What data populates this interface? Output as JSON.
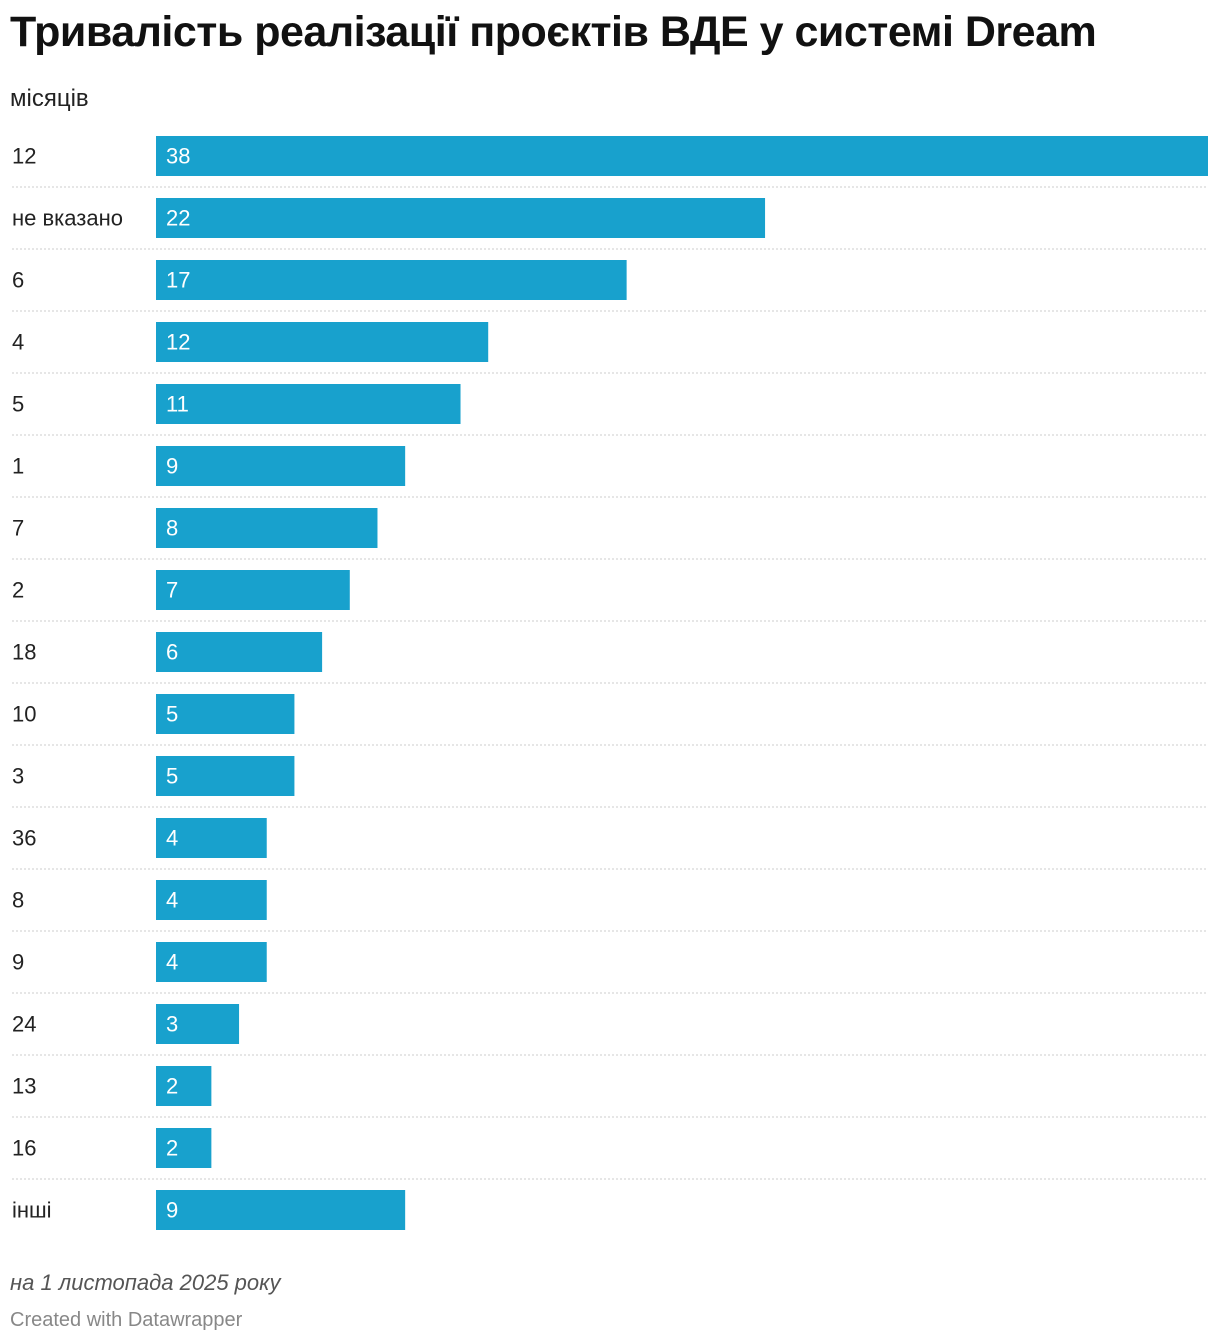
{
  "header": {
    "title": "Тривалість реалізації проєктів ВДЕ у системі Dream",
    "subtitle": "місяців"
  },
  "footer": {
    "notes": "на 1 листопада 2025 року",
    "credit": "Created with Datawrapper"
  },
  "colors": {
    "bar": "#18a1cd",
    "bar_label": "#ffffff",
    "separator": "#cccccc"
  },
  "chart_data": {
    "type": "bar",
    "orientation": "horizontal",
    "title": "Тривалість реалізації проєктів ВДЕ у системі Dream",
    "categories": [
      "12",
      "не вказано",
      "6",
      "4",
      "5",
      "1",
      "7",
      "2",
      "18",
      "10",
      "3",
      "36",
      "8",
      "9",
      "24",
      "13",
      "16",
      "інші"
    ],
    "values": [
      38,
      22,
      17,
      12,
      11,
      9,
      8,
      7,
      6,
      5,
      5,
      4,
      4,
      4,
      3,
      2,
      2,
      9
    ],
    "xlim": [
      0,
      38
    ],
    "grid": false,
    "legend": "none"
  }
}
